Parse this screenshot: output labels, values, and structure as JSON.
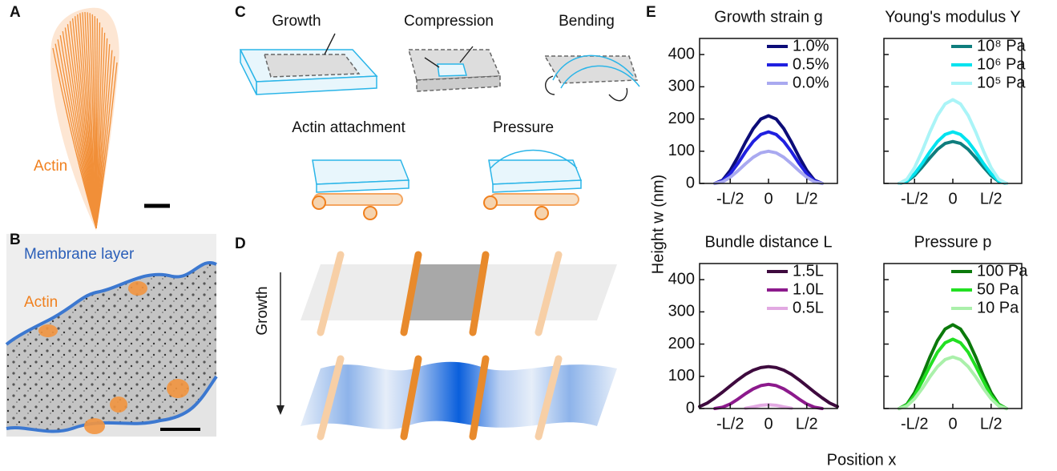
{
  "panels": {
    "A": {
      "label": "A",
      "actin": "Actin"
    },
    "B": {
      "label": "B",
      "membrane": "Membrane layer",
      "actin": "Actin"
    },
    "C": {
      "label": "C",
      "growth": "Growth",
      "compression": "Compression",
      "bending": "Bending",
      "attachment": "Actin attachment",
      "pressure": "Pressure"
    },
    "D": {
      "label": "D",
      "growth": "Growth"
    },
    "E": {
      "label": "E",
      "ylabel": "Height w (nm)",
      "xlabel": "Position x"
    }
  },
  "chart_data": [
    {
      "type": "line",
      "title": "Growth strain g",
      "x": [
        -0.7,
        -0.6,
        -0.5,
        -0.4,
        -0.3,
        -0.2,
        -0.1,
        0,
        0.1,
        0.2,
        0.3,
        0.4,
        0.5,
        0.6,
        0.7
      ],
      "series": [
        {
          "name": "1.0%",
          "color": "#0c0c78",
          "values": [
            0,
            10,
            40,
            82,
            128,
            170,
            200,
            210,
            200,
            170,
            128,
            82,
            40,
            10,
            0
          ]
        },
        {
          "name": "0.5%",
          "color": "#2020e0",
          "values": [
            0,
            8,
            30,
            62,
            98,
            130,
            152,
            160,
            152,
            130,
            98,
            62,
            30,
            8,
            0
          ]
        },
        {
          "name": "0.0%",
          "color": "#a9a9f0",
          "values": [
            0,
            5,
            19,
            39,
            61,
            81,
            95,
            100,
            95,
            81,
            61,
            39,
            19,
            5,
            0
          ]
        }
      ],
      "xlim": [
        -0.9,
        0.9
      ],
      "ylim": [
        0,
        450
      ],
      "xticks": [
        {
          "value": -0.5,
          "label": "-L/2"
        },
        0,
        {
          "value": 0.5,
          "label": "L/2"
        }
      ],
      "yticks": [
        0,
        100,
        200,
        300,
        400
      ],
      "ytick_labels": true
    },
    {
      "type": "line",
      "title": "Young's modulus Y",
      "x": [
        -0.7,
        -0.6,
        -0.5,
        -0.4,
        -0.3,
        -0.2,
        -0.1,
        0,
        0.1,
        0.2,
        0.3,
        0.4,
        0.5,
        0.6,
        0.7
      ],
      "series": [
        {
          "name": "10⁸ Pa",
          "color": "#0f7d7d",
          "values": [
            0,
            6,
            24,
            51,
            79,
            106,
            124,
            130,
            124,
            106,
            79,
            51,
            24,
            6,
            0
          ]
        },
        {
          "name": "10⁶ Pa",
          "color": "#00e3ef",
          "values": [
            0,
            8,
            30,
            62,
            98,
            130,
            152,
            160,
            152,
            130,
            98,
            62,
            30,
            8,
            0
          ]
        },
        {
          "name": "10⁵ Pa",
          "color": "#aaf4f7",
          "values": [
            0,
            13,
            49,
            101,
            159,
            211,
            247,
            260,
            247,
            211,
            159,
            101,
            49,
            13,
            0
          ]
        }
      ],
      "xlim": [
        -0.9,
        0.9
      ],
      "ylim": [
        0,
        450
      ],
      "xticks": [
        {
          "value": -0.5,
          "label": "-L/2"
        },
        0,
        {
          "value": 0.5,
          "label": "L/2"
        }
      ],
      "yticks": [
        0,
        100,
        200,
        300,
        400
      ],
      "ytick_labels": false
    },
    {
      "type": "line",
      "title": "Bundle distance L",
      "x": [
        -0.9,
        -0.8,
        -0.7,
        -0.6,
        -0.5,
        -0.4,
        -0.3,
        -0.2,
        -0.1,
        0,
        0.1,
        0.2,
        0.3,
        0.4,
        0.5,
        0.6,
        0.7,
        0.8,
        0.9
      ],
      "series": [
        {
          "name": "1.5L",
          "color": "#3e0a3e",
          "values": [
            6,
            17,
            33,
            51,
            70,
            89,
            106,
            119,
            127,
            130,
            127,
            119,
            106,
            89,
            70,
            51,
            33,
            17,
            6
          ]
        },
        {
          "name": "1.0L",
          "color": "#8c1a8c",
          "values": [
            null,
            null,
            0,
            4,
            14,
            29,
            46,
            61,
            71,
            75,
            71,
            61,
            46,
            29,
            14,
            4,
            0,
            null,
            null
          ]
        },
        {
          "name": "0.5L",
          "color": "#e2a9e2",
          "values": [
            null,
            null,
            null,
            null,
            null,
            null,
            1,
            5,
            10,
            12,
            10,
            5,
            1,
            null,
            null,
            null,
            null,
            null,
            null
          ]
        }
      ],
      "xlim": [
        -0.9,
        0.9
      ],
      "ylim": [
        0,
        450
      ],
      "xticks": [
        {
          "value": -0.5,
          "label": "-L/2"
        },
        0,
        {
          "value": 0.5,
          "label": "L/2"
        }
      ],
      "yticks": [
        0,
        100,
        200,
        300,
        400
      ],
      "ytick_labels": true
    },
    {
      "type": "line",
      "title": "Pressure p",
      "x": [
        -0.7,
        -0.6,
        -0.5,
        -0.4,
        -0.3,
        -0.2,
        -0.1,
        0,
        0.1,
        0.2,
        0.3,
        0.4,
        0.5,
        0.6,
        0.7
      ],
      "series": [
        {
          "name": "100 Pa",
          "color": "#0b790b",
          "values": [
            0,
            13,
            49,
            101,
            159,
            211,
            247,
            260,
            247,
            211,
            159,
            101,
            49,
            13,
            0
          ]
        },
        {
          "name": "50 Pa",
          "color": "#22e022",
          "values": [
            0,
            11,
            40,
            84,
            131,
            175,
            204,
            215,
            204,
            175,
            131,
            84,
            40,
            11,
            0
          ]
        },
        {
          "name": "10 Pa",
          "color": "#aaf0aa",
          "values": [
            0,
            8,
            30,
            62,
            98,
            130,
            152,
            160,
            152,
            130,
            98,
            62,
            30,
            8,
            0
          ]
        }
      ],
      "xlim": [
        -0.9,
        0.9
      ],
      "ylim": [
        0,
        450
      ],
      "xticks": [
        {
          "value": -0.5,
          "label": "-L/2"
        },
        0,
        {
          "value": 0.5,
          "label": "L/2"
        }
      ],
      "yticks": [
        0,
        100,
        200,
        300,
        400
      ],
      "ytick_labels": false
    }
  ]
}
